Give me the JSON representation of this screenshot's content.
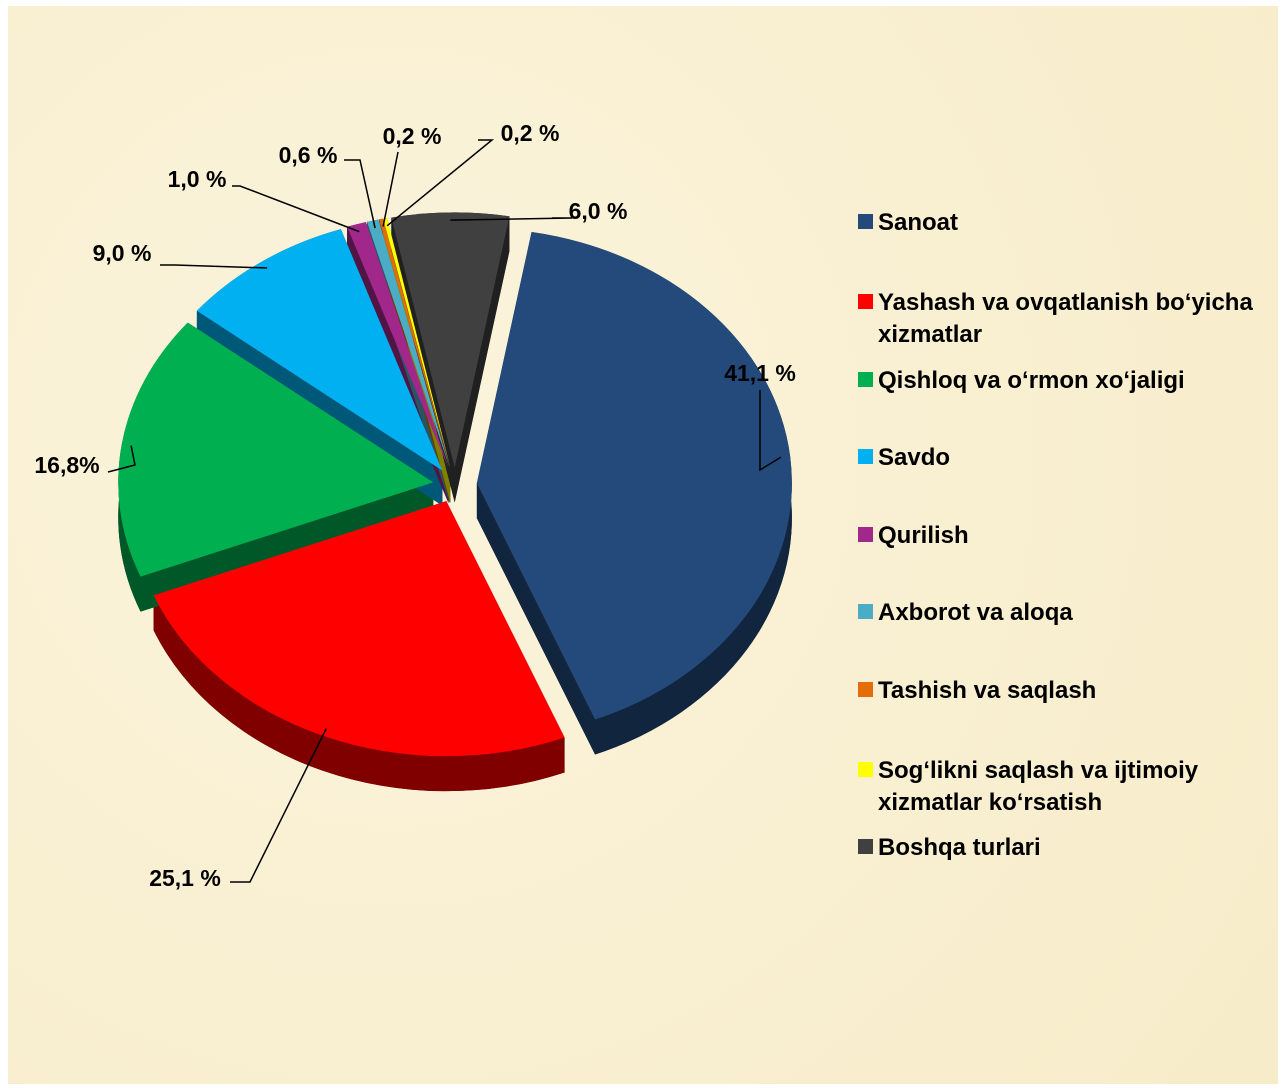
{
  "chart_data": {
    "type": "pie",
    "categories": [
      "Sanoat",
      "Yashash va ovqatlanish bo‘yicha xizmatlar",
      "Qishloq va o‘rmon xo‘jaligi",
      "Savdo",
      "Qurilish",
      "Axborot va aloqa",
      "Tashish va saqlash",
      "Sog‘likni saqlash va ijtimoiy xizmatlar ko‘rsatish",
      "Boshqa turlari"
    ],
    "values": [
      41.1,
      25.1,
      16.8,
      9.0,
      1.0,
      0.6,
      0.2,
      0.2,
      6.0
    ],
    "value_labels": [
      "41,1 %",
      "25,1 %",
      "16,8%",
      "9,0 %",
      "1,0 %",
      "0,6 %",
      "0,2 %",
      "0,2 %",
      "6,0 %"
    ],
    "colors": [
      "#244a7c",
      "#ff0000",
      "#00b050",
      "#00b0f0",
      "#a1288a",
      "#4bacc6",
      "#e46c0a",
      "#ffff00",
      "#404040"
    ],
    "legend": "right"
  }
}
